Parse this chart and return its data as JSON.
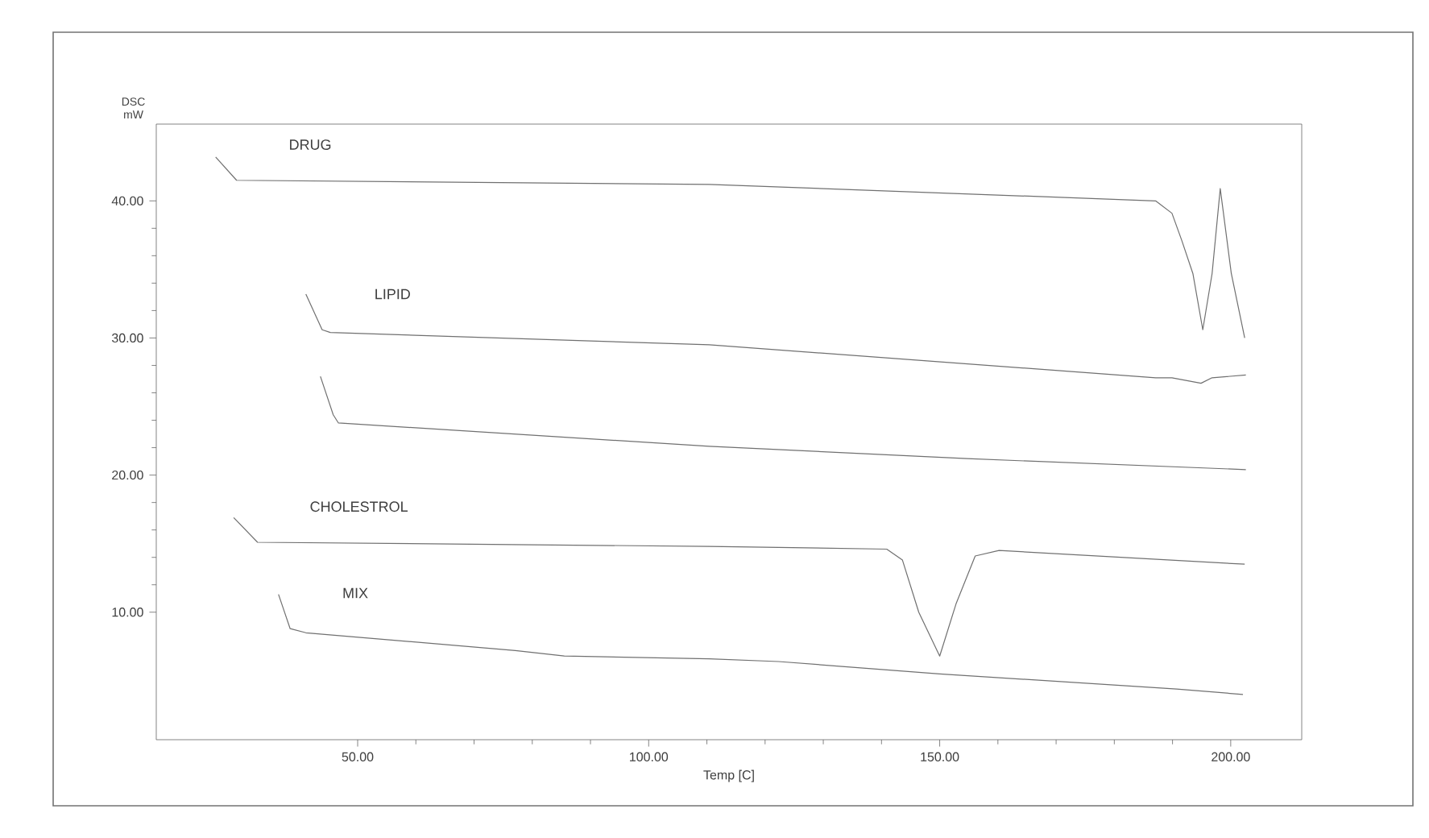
{
  "chart_data": {
    "type": "line",
    "xlabel": "Temp [C]",
    "ylabel": "DSC mW",
    "xlim": [
      15.4,
      212.2
    ],
    "ylim": [
      0.7,
      45.6
    ],
    "xticks": [
      {
        "value": 50,
        "label": "50.00"
      },
      {
        "value": 100,
        "label": "100.00"
      },
      {
        "value": 150,
        "label": "150.00"
      },
      {
        "value": 200,
        "label": "200.00"
      }
    ],
    "yticks": [
      {
        "value": 10,
        "label": "10.00"
      },
      {
        "value": 20,
        "label": "20.00"
      },
      {
        "value": 30,
        "label": "30.00"
      },
      {
        "value": 40,
        "label": "40.00"
      }
    ],
    "grid": false,
    "legend": false,
    "marker": "none",
    "line_style": "solid",
    "series": [
      {
        "name": "DRUG",
        "color": "#707070",
        "x": [
          25.6,
          29.2,
          110.4,
          187.1,
          189.9,
          191.6,
          193.5,
          195.2,
          196.8,
          198.2,
          200.1,
          202.4
        ],
        "values": [
          43.2,
          41.5,
          41.2,
          40.0,
          39.1,
          37.1,
          34.7,
          30.6,
          34.7,
          40.9,
          34.7,
          30.0
        ]
      },
      {
        "name": "LIPID",
        "color": "#707070",
        "x": [
          41.1,
          43.9,
          45.3,
          110.4,
          187.1,
          189.9,
          194.9,
          196.8,
          202.6
        ],
        "values": [
          33.2,
          30.6,
          30.4,
          29.5,
          27.1,
          27.1,
          26.7,
          27.1,
          27.3
        ]
      },
      {
        "color": "#707070",
        "x": [
          43.6,
          45.8,
          46.7,
          110.4,
          154.7,
          202.6
        ],
        "values": [
          27.2,
          24.4,
          23.8,
          22.1,
          21.2,
          20.4
        ]
      },
      {
        "name": "CHOLESTROL",
        "color": "#707070",
        "x": [
          28.7,
          32.8,
          110.4,
          140.9,
          143.6,
          146.4,
          150.0,
          152.8,
          156.1,
          160.2,
          202.4
        ],
        "values": [
          16.9,
          15.1,
          14.8,
          14.6,
          13.8,
          10.0,
          6.8,
          10.6,
          14.1,
          14.5,
          13.5
        ]
      },
      {
        "name": "MIX",
        "color": "#707070",
        "x": [
          36.4,
          38.4,
          41.1,
          77.1,
          85.5,
          110.4,
          122.3,
          150.0,
          190.7,
          202.1
        ],
        "values": [
          11.3,
          8.8,
          8.5,
          7.2,
          6.8,
          6.6,
          6.4,
          5.5,
          4.4,
          4.0
        ]
      }
    ]
  }
}
